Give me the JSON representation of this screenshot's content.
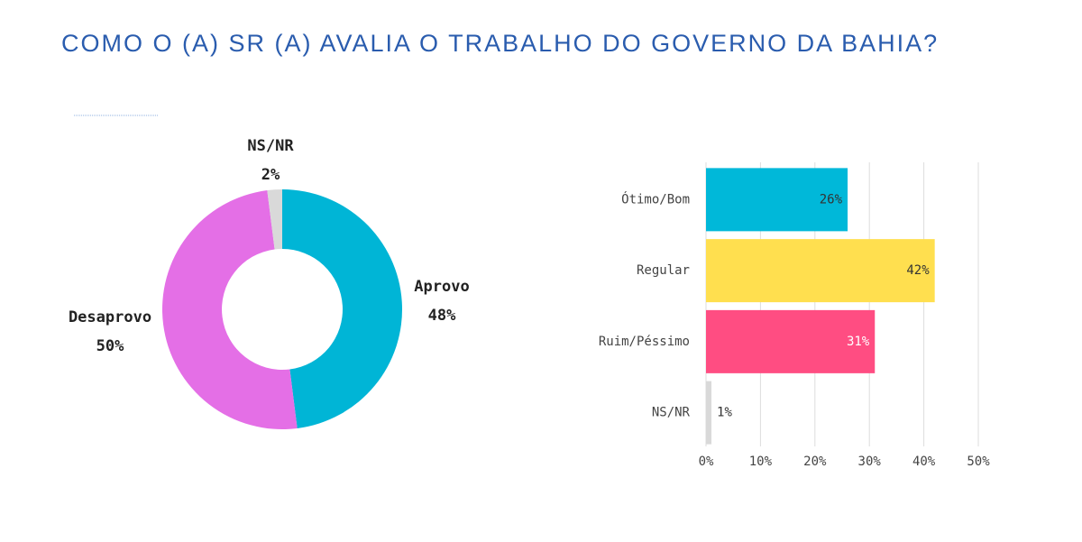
{
  "title": "COMO O (A) SR (A) AVALIA O TRABALHO DO GOVERNO DA BAHIA?",
  "chart_data": [
    {
      "type": "donut",
      "categories": [
        "Aprovo",
        "Desaprovo",
        "NS/NR"
      ],
      "values": [
        48,
        50,
        2
      ],
      "value_labels": [
        "48%",
        "50%",
        "2%"
      ],
      "colors": [
        "#00b5d6",
        "#e46fe6",
        "#d9d9d9"
      ]
    },
    {
      "type": "hbar",
      "categories": [
        "Ótimo/Bom",
        "Regular",
        "Ruim/Péssimo",
        "NS/NR"
      ],
      "values": [
        26,
        42,
        31,
        1
      ],
      "value_labels": [
        "26%",
        "42%",
        "31%",
        "1%"
      ],
      "colors": [
        "#00b8d9",
        "#ffdf4f",
        "#ff4d82",
        "#d9d9d9"
      ],
      "xlim": [
        0,
        50
      ],
      "xticks": [
        {
          "value": 0,
          "label": "0%"
        },
        {
          "value": 10,
          "label": "10%"
        },
        {
          "value": 20,
          "label": "20%"
        },
        {
          "value": 30,
          "label": "30%"
        },
        {
          "value": 40,
          "label": "40%"
        },
        {
          "value": 50,
          "label": "50%"
        }
      ],
      "grid": true
    }
  ]
}
